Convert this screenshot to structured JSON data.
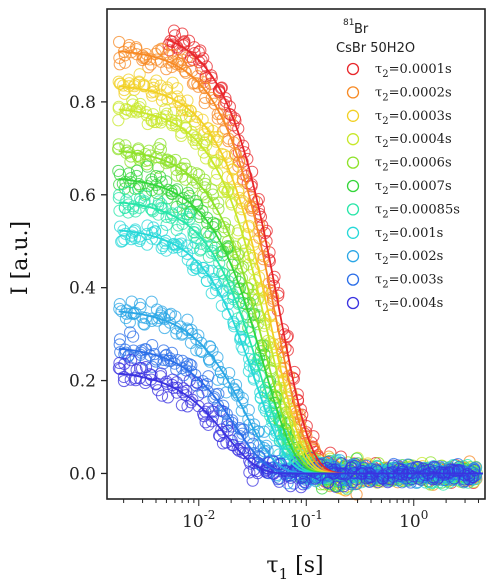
{
  "chart_data": {
    "type": "scatter",
    "title": "",
    "xlabel": "τ1 [s]",
    "ylabel": "I [a.u.]",
    "xscale": "log",
    "xlim": [
      0.0014,
      4.6
    ],
    "ylim": [
      -0.055,
      1.0
    ],
    "xticks": [
      {
        "value": 0.01,
        "base": "10",
        "exp": "-2"
      },
      {
        "value": 0.1,
        "base": "10",
        "exp": "-1"
      },
      {
        "value": 1,
        "base": "10",
        "exp": "0"
      }
    ],
    "yticks": [
      {
        "value": 0.0,
        "label": "0.0"
      },
      {
        "value": 0.2,
        "label": "0.2"
      },
      {
        "value": 0.4,
        "label": "0.4"
      },
      {
        "value": 0.6,
        "label": "0.6"
      },
      {
        "value": 0.8,
        "label": "0.8"
      }
    ],
    "grid": false,
    "legend": {
      "placement": "top-right",
      "header_sup": "81",
      "header_element": "Br",
      "header_line2": "CsBr 50H2O"
    },
    "series": [
      {
        "name": "τ2=0.0001s",
        "label_prefix": "τ",
        "label_sub": "2",
        "label_rest": "=0.0001s",
        "color": "#e8262a",
        "amplitude": 0.96,
        "t0": 0.056,
        "xstart": 0.005
      },
      {
        "name": "τ2=0.0002s",
        "label_prefix": "τ",
        "label_sub": "2",
        "label_rest": "=0.0002s",
        "color": "#f78a24",
        "amplitude": 0.915,
        "t0": 0.052,
        "xstart": 0.0018
      },
      {
        "name": "τ2=0.0003s",
        "label_prefix": "τ",
        "label_sub": "2",
        "label_rest": "=0.0003s",
        "color": "#f2d024",
        "amplitude": 0.84,
        "t0": 0.048,
        "xstart": 0.0018
      },
      {
        "name": "τ2=0.0004s",
        "label_prefix": "τ",
        "label_sub": "2",
        "label_rest": "=0.0004s",
        "color": "#c8e82a",
        "amplitude": 0.79,
        "t0": 0.045,
        "xstart": 0.0018
      },
      {
        "name": "τ2=0.0006s",
        "label_prefix": "τ",
        "label_sub": "2",
        "label_rest": "=0.0006s",
        "color": "#8ee22a",
        "amplitude": 0.7,
        "t0": 0.042,
        "xstart": 0.0018
      },
      {
        "name": "τ2=0.0007s",
        "label_prefix": "τ",
        "label_sub": "2",
        "label_rest": "=0.0007s",
        "color": "#34d63a",
        "amplitude": 0.64,
        "t0": 0.04,
        "xstart": 0.0018
      },
      {
        "name": "τ2=0.00085s",
        "label_prefix": "τ",
        "label_sub": "2",
        "label_rest": "=0.00085s",
        "color": "#28e6a8",
        "amplitude": 0.59,
        "t0": 0.037,
        "xstart": 0.0018
      },
      {
        "name": "τ2=0.001s",
        "label_prefix": "τ",
        "label_sub": "2",
        "label_rest": "=0.001s",
        "color": "#26d8d8",
        "amplitude": 0.53,
        "t0": 0.034,
        "xstart": 0.0018
      },
      {
        "name": "τ2=0.002s",
        "label_prefix": "τ",
        "label_sub": "2",
        "label_rest": "=0.002s",
        "color": "#2aa6e6",
        "amplitude": 0.355,
        "t0": 0.027,
        "xstart": 0.0018
      },
      {
        "name": "τ2=0.003s",
        "label_prefix": "τ",
        "label_sub": "2",
        "label_rest": "=0.003s",
        "color": "#2a6ee8",
        "amplitude": 0.275,
        "t0": 0.022,
        "xstart": 0.0018
      },
      {
        "name": "τ2=0.004s",
        "label_prefix": "τ",
        "label_sub": "2",
        "label_rest": "=0.004s",
        "color": "#3a32e0",
        "amplitude": 0.222,
        "t0": 0.018,
        "xstart": 0.0018
      }
    ]
  }
}
